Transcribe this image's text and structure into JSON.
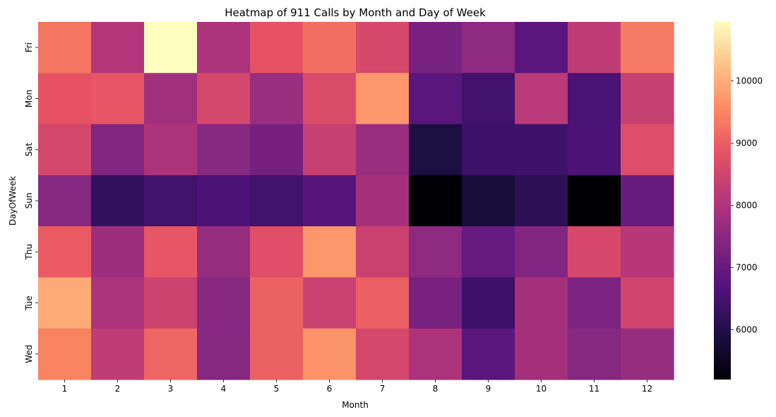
{
  "chart_data": {
    "type": "heatmap",
    "title": "Heatmap of 911 Calls by Month and Day of Week",
    "xlabel": "Month",
    "ylabel": "DayOfWeek",
    "x": [
      "1",
      "2",
      "3",
      "4",
      "5",
      "6",
      "7",
      "8",
      "9",
      "10",
      "11",
      "12"
    ],
    "y": [
      "Fri",
      "Mon",
      "Sat",
      "Sun",
      "Thu",
      "Tue",
      "Wed"
    ],
    "values": [
      [
        9300,
        8050,
        10950,
        7950,
        8850,
        9200,
        8600,
        7250,
        7550,
        6800,
        8250,
        9350
      ],
      [
        8850,
        8900,
        7800,
        8550,
        7700,
        8650,
        9700,
        6800,
        6450,
        8150,
        6550,
        8350
      ],
      [
        8550,
        7400,
        7950,
        7450,
        7200,
        8350,
        7700,
        5900,
        6400,
        6400,
        6600,
        8700
      ],
      [
        7450,
        6250,
        6450,
        6600,
        6450,
        6750,
        7850,
        5200,
        5850,
        6150,
        5200,
        7000
      ],
      [
        8950,
        7750,
        8900,
        7650,
        8750,
        9700,
        8400,
        7550,
        6950,
        7400,
        8600,
        8100
      ],
      [
        9950,
        7950,
        8450,
        7450,
        9050,
        8400,
        9000,
        7250,
        6400,
        7850,
        7300,
        8500
      ],
      [
        9450,
        8250,
        9100,
        7450,
        9050,
        9650,
        8550,
        7950,
        6800,
        7850,
        7450,
        7650
      ]
    ],
    "colormap": "magma",
    "vmin": 5200,
    "vmax": 10950,
    "colorbar_ticks": [
      6000,
      7000,
      8000,
      9000,
      10000
    ]
  }
}
